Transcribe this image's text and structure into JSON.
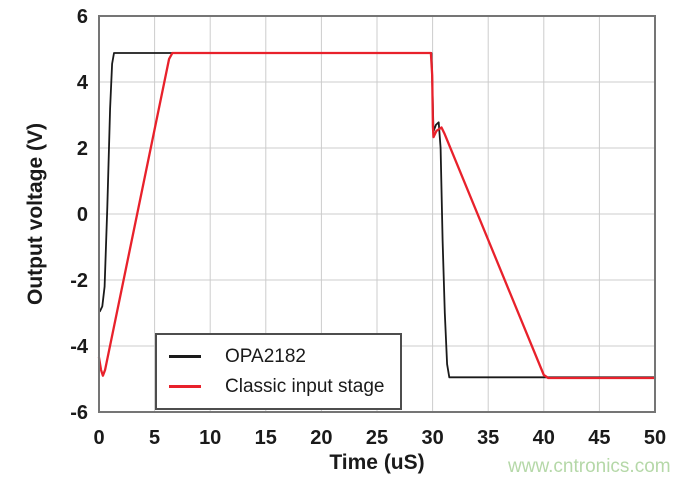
{
  "watermark": "www.cntronics.com",
  "chart_data": {
    "type": "line",
    "title": "",
    "xlabel": "Time (uS)",
    "ylabel": "Output voltage (V)",
    "xlim": [
      0,
      50
    ],
    "ylim": [
      -6,
      6
    ],
    "xticks": [
      0,
      5,
      10,
      15,
      20,
      25,
      30,
      35,
      40,
      45,
      50
    ],
    "yticks": [
      -6,
      -4,
      -2,
      0,
      2,
      4,
      6
    ],
    "grid": true,
    "legend_position": "inside-lower-left",
    "axis_frame_color": "#757575",
    "grid_color": "#cccccc",
    "series": [
      {
        "name": "OPA2182",
        "color": "#1a1a1a",
        "points": [
          [
            0.08,
            -2.95
          ],
          [
            0.3,
            -2.8
          ],
          [
            0.5,
            -2.2
          ],
          [
            0.75,
            0.2
          ],
          [
            1.0,
            3.2
          ],
          [
            1.18,
            4.55
          ],
          [
            1.35,
            4.88
          ],
          [
            29.9,
            4.88
          ],
          [
            30.0,
            3.6
          ],
          [
            30.08,
            2.5
          ],
          [
            30.3,
            2.7
          ],
          [
            30.55,
            2.78
          ],
          [
            30.72,
            2.0
          ],
          [
            30.9,
            -0.8
          ],
          [
            31.1,
            -3.0
          ],
          [
            31.3,
            -4.55
          ],
          [
            31.5,
            -4.95
          ],
          [
            50,
            -4.95
          ]
        ]
      },
      {
        "name": "Classic input stage",
        "color": "#e8212b",
        "points": [
          [
            0,
            -4.35
          ],
          [
            0.18,
            -4.72
          ],
          [
            0.35,
            -4.9
          ],
          [
            0.55,
            -4.72
          ],
          [
            6.3,
            4.7
          ],
          [
            6.6,
            4.88
          ],
          [
            29.85,
            4.88
          ],
          [
            29.96,
            4.2
          ],
          [
            30.03,
            2.65
          ],
          [
            30.08,
            2.33
          ],
          [
            30.35,
            2.52
          ],
          [
            30.8,
            2.62
          ],
          [
            31.05,
            2.45
          ],
          [
            40.0,
            -4.88
          ],
          [
            40.4,
            -4.97
          ],
          [
            50,
            -4.97
          ]
        ]
      }
    ]
  }
}
